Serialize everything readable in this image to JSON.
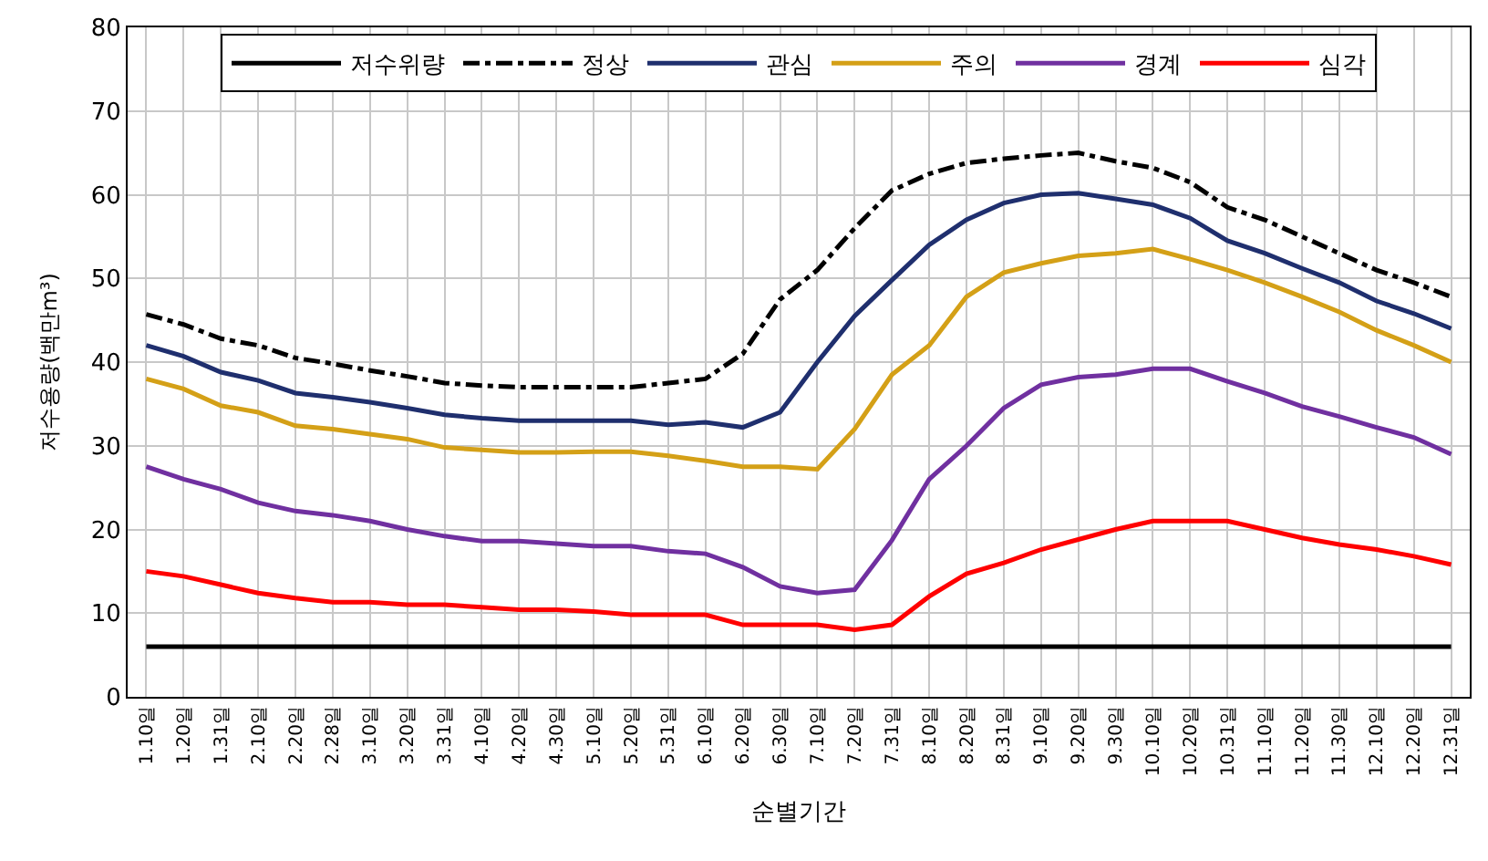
{
  "chart_data": {
    "type": "line",
    "xlabel": "순별기간",
    "ylabel": "저수용량(백만m³)",
    "categories": [
      "1.10일",
      "1.20일",
      "1.31일",
      "2.10일",
      "2.20일",
      "2.28일",
      "3.10일",
      "3.20일",
      "3.31일",
      "4.10일",
      "4.20일",
      "4.30일",
      "5.10일",
      "5.20일",
      "5.31일",
      "6.10일",
      "6.20일",
      "6.30일",
      "7.10일",
      "7.20일",
      "7.31일",
      "8.10일",
      "8.20일",
      "8.31일",
      "9.10일",
      "9.20일",
      "9.30일",
      "10.10일",
      "10.20일",
      "10.31일",
      "11.10일",
      "11.20일",
      "11.30일",
      "12.10일",
      "12.20일",
      "12.31일"
    ],
    "ylim": [
      0,
      80
    ],
    "yticks": [
      0,
      10,
      20,
      30,
      40,
      50,
      60,
      70,
      80
    ],
    "grid": true,
    "legend": "top",
    "marker": "none",
    "series": [
      {
        "name": "저수위량",
        "color": "#000000",
        "line_style": "solid",
        "values": [
          6,
          6,
          6,
          6,
          6,
          6,
          6,
          6,
          6,
          6,
          6,
          6,
          6,
          6,
          6,
          6,
          6,
          6,
          6,
          6,
          6,
          6,
          6,
          6,
          6,
          6,
          6,
          6,
          6,
          6,
          6,
          6,
          6,
          6,
          6,
          6
        ]
      },
      {
        "name": "정상",
        "color": "#000000",
        "line_style": "dashdot",
        "values": [
          45.7,
          44.5,
          42.8,
          42,
          40.5,
          39.8,
          39,
          38.3,
          37.5,
          37.2,
          37,
          37,
          37,
          37,
          37.5,
          38,
          41,
          47.5,
          51,
          56,
          60.5,
          62.5,
          63.8,
          64.3,
          64.7,
          65,
          64,
          63.2,
          61.5,
          58.5,
          57,
          55,
          53,
          51,
          49.5,
          47.8
        ]
      },
      {
        "name": "관심",
        "color": "#1f2f6e",
        "line_style": "solid",
        "values": [
          42,
          40.7,
          38.8,
          37.8,
          36.3,
          35.8,
          35.2,
          34.5,
          33.7,
          33.3,
          33,
          33,
          33,
          33,
          32.5,
          32.8,
          32.2,
          34,
          40,
          45.5,
          49.8,
          54,
          57,
          59,
          60,
          60.2,
          59.5,
          58.8,
          57.2,
          54.5,
          53,
          51.2,
          49.5,
          47.3,
          45.8,
          44
        ]
      },
      {
        "name": "주의",
        "color": "#d4a017",
        "line_style": "solid",
        "values": [
          38,
          36.8,
          34.8,
          34,
          32.4,
          32,
          31.4,
          30.8,
          29.8,
          29.5,
          29.2,
          29.2,
          29.3,
          29.3,
          28.8,
          28.2,
          27.5,
          27.5,
          27.2,
          32,
          38.5,
          42,
          47.8,
          50.7,
          51.8,
          52.7,
          53,
          53.5,
          52.3,
          51,
          49.5,
          47.8,
          46,
          43.8,
          42,
          40
        ]
      },
      {
        "name": "경계",
        "color": "#7030a0",
        "line_style": "solid",
        "values": [
          27.5,
          26,
          24.8,
          23.2,
          22.2,
          21.7,
          21,
          20,
          19.2,
          18.6,
          18.6,
          18.3,
          18,
          18,
          17.4,
          17.1,
          15.5,
          13.2,
          12.4,
          12.8,
          18.7,
          26,
          30,
          34.5,
          37.3,
          38.2,
          38.5,
          39.2,
          39.2,
          37.7,
          36.3,
          34.7,
          33.5,
          32.2,
          31,
          29
        ]
      },
      {
        "name": "심각",
        "color": "#ff0000",
        "line_style": "solid",
        "values": [
          15,
          14.4,
          13.4,
          12.4,
          11.8,
          11.3,
          11.3,
          11,
          11,
          10.7,
          10.4,
          10.4,
          10.2,
          9.8,
          9.8,
          9.8,
          8.6,
          8.6,
          8.6,
          8,
          8.6,
          12,
          14.7,
          16,
          17.6,
          18.8,
          20,
          21,
          21,
          21,
          20,
          19,
          18.2,
          17.6,
          16.8,
          15.8
        ]
      }
    ]
  }
}
